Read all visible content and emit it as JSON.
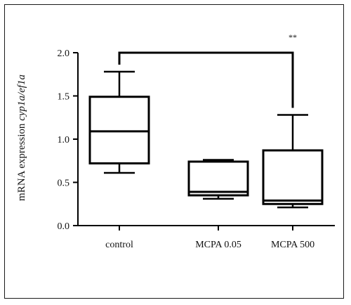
{
  "chart_data": {
    "type": "box",
    "title": "",
    "xlabel": "",
    "ylabel_prefix": "mRNA expression ",
    "ylabel_italic": "cyp1a/ef1a",
    "ylim": [
      0.0,
      2.0
    ],
    "yticks": [
      "0.0",
      "0.5",
      "1.0",
      "1.5",
      "2.0"
    ],
    "categories": [
      "control",
      "MCPA 0.05",
      "MCPA 500"
    ],
    "boxes": [
      {
        "name": "control",
        "min": 0.61,
        "q1": 0.72,
        "median": 1.09,
        "q3": 1.49,
        "max": 1.78
      },
      {
        "name": "MCPA 0.05",
        "min": 0.31,
        "q1": 0.35,
        "median": 0.39,
        "q3": 0.74,
        "max": 0.76
      },
      {
        "name": "MCPA 500",
        "min": 0.21,
        "q1": 0.25,
        "median": 0.29,
        "q3": 0.87,
        "max": 1.28
      }
    ],
    "significance": {
      "from": "control",
      "to": "MCPA 500",
      "label": "**"
    }
  }
}
